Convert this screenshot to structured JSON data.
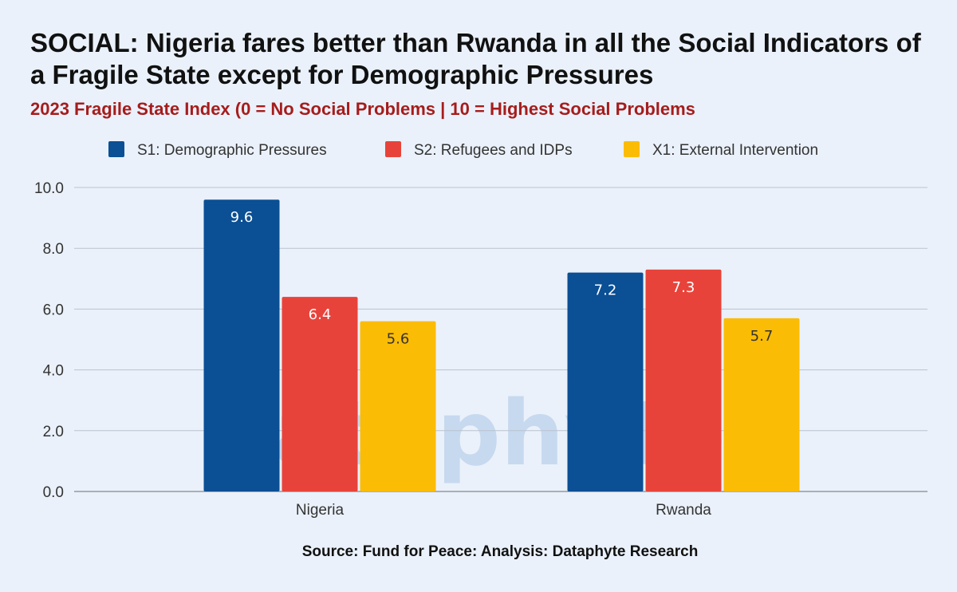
{
  "title": "SOCIAL: Nigeria fares better than Rwanda in all the Social Indicators of a Fragile State except for Demographic Pressures",
  "subtitle": "2023 Fragile State Index (0 = No Social Problems | 10 = Highest Social Problems",
  "source": "Source: Fund for Peace: Analysis: Dataphyte Research",
  "watermark": "Dataphyte",
  "chart_data": {
    "type": "bar",
    "title": "SOCIAL: Nigeria fares better than Rwanda in all the Social Indicators of a Fragile State except for Demographic Pressures",
    "subtitle": "2023 Fragile State Index (0 = No Social Problems | 10 = Highest Social Problems",
    "categories": [
      "Nigeria",
      "Rwanda"
    ],
    "series": [
      {
        "name": "S1: Demographic Pressures",
        "values": [
          9.6,
          7.2
        ],
        "color": "#0b4f94",
        "label_color": "#ffffff"
      },
      {
        "name": "S2: Refugees and IDPs",
        "values": [
          6.4,
          7.3
        ],
        "color": "#e8433a",
        "label_color": "#ffffff"
      },
      {
        "name": "X1: External Intervention",
        "values": [
          5.6,
          5.7
        ],
        "color": "#fbbc05",
        "label_color": "#333333"
      }
    ],
    "ylim": [
      0,
      10
    ],
    "yticks": [
      "0.0",
      "2.0",
      "4.0",
      "6.0",
      "8.0",
      "10.0"
    ],
    "xlabel": "",
    "ylabel": "",
    "grid": true,
    "legend_position": "top"
  }
}
